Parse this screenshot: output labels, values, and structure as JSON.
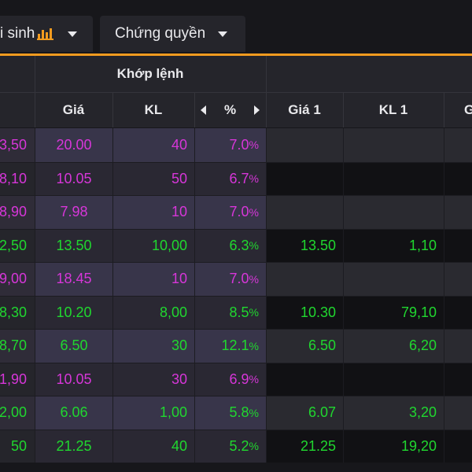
{
  "tabs": [
    {
      "label": "i sinh",
      "icon": "bar-chart-icon"
    },
    {
      "label": "Chứng quyền"
    }
  ],
  "headers": {
    "group_match": "Khớp lệnh",
    "price": "Giá",
    "volume": "KL",
    "percent": "%",
    "bid_price_1": "Giá 1",
    "bid_volume_1": "KL 1",
    "bid_price_2": "G"
  },
  "colors": {
    "purple": "#d736d9",
    "green": "#20d72f",
    "accent": "#f39b1f"
  },
  "rows": [
    {
      "ref": "3,50",
      "price": "20.00",
      "vol": "40",
      "pct": "7.0",
      "b1": "",
      "bv1": "",
      "color": "purple"
    },
    {
      "ref": "8,10",
      "price": "10.05",
      "vol": "50",
      "pct": "6.7",
      "b1": "",
      "bv1": "",
      "color": "purple"
    },
    {
      "ref": "8,90",
      "price": "7.98",
      "vol": "10",
      "pct": "7.0",
      "b1": "",
      "bv1": "",
      "color": "purple"
    },
    {
      "ref": "2,50",
      "price": "13.50",
      "vol": "10,00",
      "pct": "6.3",
      "b1": "13.50",
      "bv1": "1,10",
      "color": "green"
    },
    {
      "ref": "9,00",
      "price": "18.45",
      "vol": "10",
      "pct": "7.0",
      "b1": "",
      "bv1": "",
      "color": "purple"
    },
    {
      "ref": "8,30",
      "price": "10.20",
      "vol": "8,00",
      "pct": "8.5",
      "b1": "10.30",
      "bv1": "79,10",
      "color": "green"
    },
    {
      "ref": "8,70",
      "price": "6.50",
      "vol": "30",
      "pct": "12.1",
      "b1": "6.50",
      "bv1": "6,20",
      "color": "green"
    },
    {
      "ref": "1,90",
      "price": "10.05",
      "vol": "30",
      "pct": "6.9",
      "b1": "",
      "bv1": "",
      "color": "purple"
    },
    {
      "ref": "2,00",
      "price": "6.06",
      "vol": "1,00",
      "pct": "5.8",
      "b1": "6.07",
      "bv1": "3,20",
      "color": "green"
    },
    {
      "ref": "50",
      "price": "21.25",
      "vol": "40",
      "pct": "5.2",
      "b1": "21.25",
      "bv1": "19,20",
      "color": "green"
    }
  ],
  "percent_suffix": "%"
}
